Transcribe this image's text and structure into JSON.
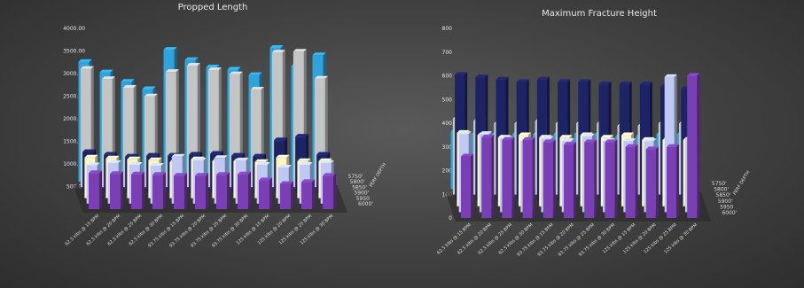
{
  "chart_data": [
    {
      "type": "bar",
      "title": "Propped Length",
      "depth_axis_label": "PERF DEPTH",
      "yticks": [
        "500.00",
        "1000.00",
        "1500.00",
        "2000.00",
        "2500.00",
        "3000.00",
        "3500.00",
        "4000.00"
      ],
      "ylim": [
        0,
        4000
      ],
      "categories": [
        "62.5 klbs @ 15 BPM",
        "62.5 klbs @ 20 BPM",
        "62.5 klbs @ 25 BPM",
        "62.5 klbs @ 30 BPM",
        "93.75 klbs @ 15 BPM",
        "93.75 klbs @ 20 BPM",
        "93.75 klbs @ 25 BPM",
        "93.75 klbs @ 30 BPM",
        "125 klbs @ 15 BPM",
        "125 klbs @ 20 BPM",
        "125 klbs @ 25 BPM",
        "125 klbs @ 30 BPM"
      ],
      "series": [
        {
          "name": "6000'",
          "color": "#7b3fb5",
          "values": [
            800,
            780,
            770,
            760,
            740,
            740,
            760,
            770,
            640,
            560,
            600,
            740
          ]
        },
        {
          "name": "5950",
          "color": "#c0c8f4",
          "values": [
            850,
            900,
            860,
            840,
            1040,
            960,
            1010,
            960,
            860,
            800,
            860,
            900
          ]
        },
        {
          "name": "5900'",
          "color": "#fdf6c0",
          "values": [
            900,
            880,
            860,
            840,
            800,
            860,
            820,
            820,
            800,
            900,
            820,
            820
          ]
        },
        {
          "name": "5850'",
          "color": "#1d2466",
          "values": [
            900,
            840,
            800,
            820,
            820,
            840,
            860,
            820,
            800,
            1160,
            1240,
            840
          ]
        },
        {
          "name": "5800'",
          "color": "#c4c4c4",
          "values": [
            2620,
            2390,
            2200,
            2010,
            2550,
            2690,
            2590,
            2500,
            2160,
            2980,
            3000,
            2400
          ]
        },
        {
          "name": "5750'",
          "color": "#2ea3dc",
          "values": [
            2650,
            2420,
            2210,
            2050,
            2920,
            2690,
            2530,
            2480,
            2360,
            2960,
            2560,
            2800
          ]
        }
      ]
    },
    {
      "type": "bar",
      "title": "Maximum Fracture Height",
      "depth_axis_label": "PERF DEPTH",
      "yticks": [
        "0",
        "100",
        "200",
        "300",
        "400",
        "500",
        "600",
        "700",
        "800"
      ],
      "ylim": [
        0,
        800
      ],
      "categories": [
        "62.5 klbs @ 15 BPM",
        "62.5 klbs @ 20 BPM",
        "62.5 klbs @ 25 BPM",
        "62.5 klbs @ 30 BPM",
        "93.75 klbs @ 15 BPM",
        "93.75 klbs @ 20 BPM",
        "93.75 klbs @ 25 BPM",
        "93.75 klbs @ 30 BPM",
        "125 klbs @ 15 BPM",
        "125 klbs @ 20 BPM",
        "125 klbs @ 25 BPM",
        "125 klbs @ 30 BPM"
      ],
      "series": [
        {
          "name": "6000'",
          "color": "#7b3fb5",
          "values": [
            260,
            340,
            330,
            330,
            320,
            310,
            320,
            320,
            300,
            290,
            300,
            600
          ]
        },
        {
          "name": "5950",
          "color": "#c0c8f4",
          "values": [
            330,
            330,
            310,
            300,
            310,
            300,
            320,
            300,
            300,
            300,
            570,
            310
          ]
        },
        {
          "name": "5900'",
          "color": "#fdf6c0",
          "values": [
            310,
            300,
            290,
            300,
            290,
            290,
            300,
            290,
            300,
            280,
            280,
            280
          ]
        },
        {
          "name": "5850'",
          "color": "#1d2466",
          "values": [
            530,
            520,
            510,
            500,
            510,
            500,
            500,
            490,
            490,
            490,
            480,
            470
          ]
        },
        {
          "name": "5800'",
          "color": "#c4c4c4",
          "values": [
            320,
            310,
            300,
            300,
            310,
            300,
            300,
            300,
            290,
            290,
            300,
            300
          ]
        },
        {
          "name": "5750'",
          "color": "#2ea3dc",
          "values": [
            240,
            230,
            230,
            230,
            230,
            230,
            230,
            230,
            220,
            220,
            230,
            230
          ]
        }
      ]
    }
  ]
}
